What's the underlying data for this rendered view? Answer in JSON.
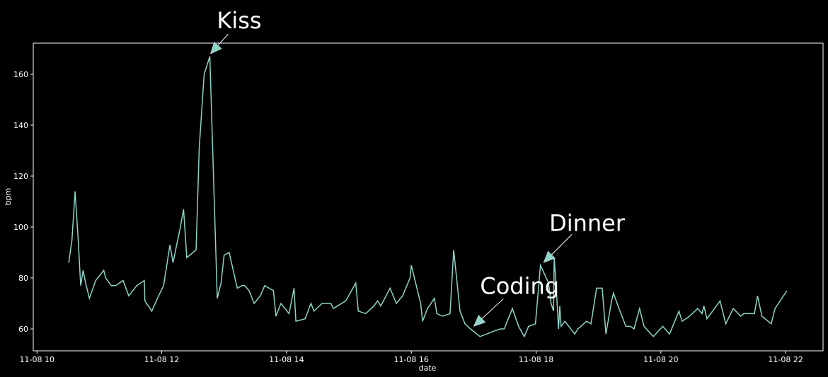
{
  "chart_data": {
    "type": "line",
    "xlabel": "date",
    "ylabel": "bpm",
    "color": "#8dd3c7",
    "x": [
      10.51,
      10.56,
      10.61,
      10.66,
      10.7,
      10.74,
      10.78,
      10.84,
      10.94,
      11.07,
      11.1,
      11.19,
      11.26,
      11.38,
      11.47,
      11.6,
      11.72,
      11.73,
      11.84,
      11.93,
      12.03,
      12.13,
      12.18,
      12.23,
      12.29,
      12.35,
      12.4,
      12.55,
      12.6,
      12.68,
      12.77,
      12.89,
      12.95,
      13.0,
      13.08,
      13.21,
      13.29,
      13.33,
      13.4,
      13.48,
      13.58,
      13.65,
      13.79,
      13.83,
      13.91,
      14.04,
      14.12,
      14.15,
      14.3,
      14.39,
      14.44,
      14.57,
      14.71,
      14.75,
      14.95,
      15.11,
      15.15,
      15.27,
      15.4,
      15.46,
      15.51,
      15.66,
      15.76,
      15.86,
      15.98,
      16.0,
      16.15,
      16.18,
      16.26,
      16.37,
      16.41,
      16.5,
      16.62,
      16.68,
      16.78,
      16.86,
      16.95,
      17.1,
      17.21,
      17.31,
      17.43,
      17.49,
      17.62,
      17.72,
      17.81,
      17.88,
      17.99,
      18.07,
      18.2,
      18.24,
      18.28,
      18.29,
      18.32,
      18.36,
      18.38,
      18.4,
      18.46,
      18.62,
      18.67,
      18.81,
      18.88,
      18.97,
      19.06,
      19.12,
      19.21,
      19.24,
      19.33,
      19.44,
      19.51,
      19.57,
      19.66,
      19.73,
      19.88,
      20.03,
      20.14,
      20.29,
      20.34,
      20.46,
      20.59,
      20.66,
      20.69,
      20.74,
      20.95,
      21.04,
      21.16,
      21.28,
      21.33,
      21.5,
      21.55,
      21.62,
      21.77,
      21.83,
      22.02
    ],
    "values": [
      86,
      95,
      114,
      95,
      77,
      83,
      78,
      72,
      79,
      83,
      80,
      77,
      77,
      79,
      73,
      77,
      79,
      71,
      67,
      72,
      77,
      93,
      86,
      92,
      99,
      107,
      88,
      91,
      131,
      160,
      167,
      72,
      78,
      89,
      90,
      76,
      77,
      77,
      75,
      70,
      73,
      77,
      75,
      65,
      70,
      66,
      76,
      63,
      64,
      70,
      67,
      70,
      70,
      68,
      71,
      78,
      67,
      66,
      69,
      71,
      69,
      76,
      70,
      73,
      80,
      85,
      70,
      63,
      68,
      72,
      66,
      65,
      66,
      91,
      67,
      62,
      60,
      57,
      58,
      59,
      60,
      60,
      68,
      61,
      57,
      61,
      62,
      85,
      78,
      70,
      67,
      88,
      78,
      60,
      69,
      61,
      63,
      58,
      60,
      63,
      62,
      76,
      76,
      58,
      71,
      74,
      68,
      61,
      61,
      60,
      68,
      61,
      57,
      61,
      58,
      67,
      63,
      65,
      68,
      66,
      69,
      64,
      71,
      62,
      68,
      65,
      66,
      66,
      73,
      65,
      62,
      68,
      75
    ],
    "xlim": [
      9.94,
      22.6
    ],
    "ylim": [
      51.4,
      172.2
    ],
    "xticks": [
      {
        "value": 10,
        "label": "11-08 10"
      },
      {
        "value": 12,
        "label": "11-08 12"
      },
      {
        "value": 14,
        "label": "11-08 14"
      },
      {
        "value": 16,
        "label": "11-08 16"
      },
      {
        "value": 18,
        "label": "11-08 18"
      },
      {
        "value": 20,
        "label": "11-08 20"
      },
      {
        "value": 22,
        "label": "11-08 22"
      }
    ],
    "yticks": [
      60,
      80,
      100,
      120,
      140,
      160
    ],
    "annotations": [
      {
        "text": "Kiss",
        "x": 12.78,
        "y": 168
      },
      {
        "text": "Coding",
        "x": 17.0,
        "y": 61
      },
      {
        "text": "Dinner",
        "x": 18.12,
        "y": 86
      }
    ]
  }
}
